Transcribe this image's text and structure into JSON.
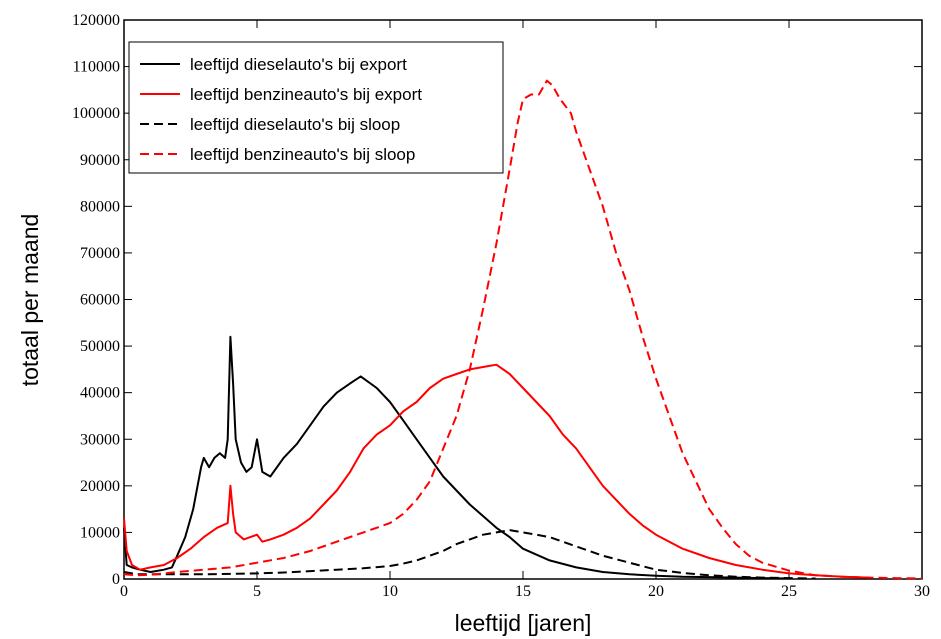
{
  "chart_data": {
    "type": "line",
    "title": "",
    "xlabel": "leeftijd [jaren]",
    "ylabel": "totaal per maand",
    "xlim": [
      0,
      30
    ],
    "ylim": [
      0,
      120000
    ],
    "x_ticks": [
      0,
      5,
      10,
      15,
      20,
      25,
      30
    ],
    "y_ticks": [
      0,
      10000,
      20000,
      30000,
      40000,
      50000,
      60000,
      70000,
      80000,
      90000,
      100000,
      110000,
      120000
    ],
    "grid": false,
    "legend_position": "top-left",
    "series": [
      {
        "name": "leeftijd dieselauto's bij export",
        "color": "#000000",
        "dash": "solid",
        "x": [
          0,
          0.1,
          0.3,
          0.6,
          1.0,
          1.5,
          1.8,
          2.0,
          2.3,
          2.6,
          2.9,
          3.0,
          3.2,
          3.4,
          3.6,
          3.8,
          3.9,
          4.0,
          4.1,
          4.2,
          4.4,
          4.6,
          4.8,
          5.0,
          5.2,
          5.5,
          6.0,
          6.5,
          7.0,
          7.5,
          8.0,
          8.5,
          8.9,
          9.5,
          10.0,
          10.5,
          11.0,
          11.5,
          12.0,
          12.5,
          13.0,
          13.5,
          14.0,
          14.5,
          15.0,
          16.0,
          17.0,
          18.0,
          19.0,
          20.0,
          21.0,
          22.0,
          23.0,
          24.0,
          25.0
        ],
        "y": [
          11000,
          3000,
          2500,
          2000,
          1500,
          2000,
          2500,
          5000,
          9000,
          15000,
          24000,
          26000,
          24000,
          26000,
          27000,
          26000,
          30000,
          52000,
          42000,
          30000,
          25000,
          23000,
          24000,
          30000,
          23000,
          22000,
          26000,
          29000,
          33000,
          37000,
          40000,
          42000,
          43500,
          41000,
          38000,
          34000,
          30000,
          26000,
          22000,
          19000,
          16000,
          13500,
          11000,
          9000,
          6500,
          4000,
          2500,
          1500,
          1000,
          700,
          500,
          400,
          300,
          200,
          100
        ]
      },
      {
        "name": "leeftijd benzineauto's bij export",
        "color": "#ff0000",
        "dash": "solid",
        "x": [
          0,
          0.1,
          0.3,
          0.6,
          1.0,
          1.5,
          2.0,
          2.5,
          3.0,
          3.5,
          3.9,
          4.0,
          4.1,
          4.2,
          4.5,
          5.0,
          5.2,
          5.5,
          6.0,
          6.5,
          7.0,
          7.5,
          8.0,
          8.5,
          9.0,
          9.5,
          10.0,
          10.5,
          11.0,
          11.5,
          12.0,
          12.5,
          13.0,
          13.5,
          14.0,
          14.5,
          15.0,
          15.5,
          16.0,
          16.5,
          17.0,
          17.5,
          18.0,
          18.5,
          19.0,
          19.5,
          20.0,
          21.0,
          22.0,
          23.0,
          24.0,
          25.0,
          26.0,
          27.0,
          28.0
        ],
        "y": [
          13000,
          6000,
          3000,
          2000,
          2500,
          3000,
          4500,
          6500,
          9000,
          11000,
          12000,
          20000,
          14000,
          10000,
          8500,
          9500,
          8000,
          8500,
          9500,
          11000,
          13000,
          16000,
          19000,
          23000,
          28000,
          31000,
          33000,
          36000,
          38000,
          41000,
          43000,
          44000,
          45000,
          45500,
          46000,
          44000,
          41000,
          38000,
          35000,
          31000,
          28000,
          24000,
          20000,
          17000,
          14000,
          11500,
          9500,
          6500,
          4500,
          3000,
          2000,
          1200,
          800,
          500,
          300
        ]
      },
      {
        "name": "leeftijd dieselauto's bij sloop",
        "color": "#000000",
        "dash": "dashed",
        "x": [
          0,
          0.5,
          1,
          2,
          3,
          4,
          5,
          6,
          7,
          8,
          9,
          10,
          10.5,
          11,
          11.5,
          12,
          12.5,
          13,
          13.5,
          14,
          14.5,
          15,
          15.5,
          16,
          16.5,
          17,
          17.5,
          18,
          19,
          20,
          21,
          22,
          23,
          24,
          25,
          26
        ],
        "y": [
          1500,
          1000,
          1000,
          1000,
          1000,
          1100,
          1200,
          1400,
          1700,
          2000,
          2300,
          2800,
          3300,
          4000,
          5000,
          6000,
          7500,
          8500,
          9500,
          10000,
          10500,
          10000,
          9500,
          9000,
          8000,
          7000,
          6000,
          5000,
          3500,
          2000,
          1300,
          800,
          500,
          300,
          200,
          100
        ]
      },
      {
        "name": "leeftijd benzineauto's bij sloop",
        "color": "#ff0000",
        "dash": "dashed",
        "x": [
          0,
          0.5,
          1,
          2,
          3,
          4,
          5,
          6,
          7,
          8,
          9,
          10,
          10.5,
          11,
          11.5,
          12,
          12.5,
          13,
          13.5,
          14,
          14.5,
          14.8,
          15.0,
          15.3,
          15.6,
          15.9,
          16.1,
          16.4,
          16.8,
          17.0,
          17.5,
          18.0,
          18.5,
          19.0,
          19.5,
          20.0,
          20.5,
          21.0,
          21.5,
          22.0,
          22.5,
          23.0,
          23.5,
          24.0,
          25.0,
          26.0,
          27.0,
          28.0,
          29.0,
          30.0
        ],
        "y": [
          1000,
          800,
          900,
          1500,
          2000,
          2500,
          3500,
          4500,
          6000,
          8000,
          10000,
          12000,
          14000,
          17000,
          21000,
          28000,
          35000,
          45000,
          58000,
          72000,
          88000,
          98000,
          103000,
          104000,
          104000,
          107000,
          106000,
          103000,
          100000,
          96000,
          88000,
          80000,
          70000,
          62000,
          52000,
          43000,
          35000,
          27000,
          21000,
          15000,
          11000,
          7500,
          5000,
          3500,
          1800,
          800,
          500,
          300,
          200,
          100
        ]
      }
    ]
  }
}
